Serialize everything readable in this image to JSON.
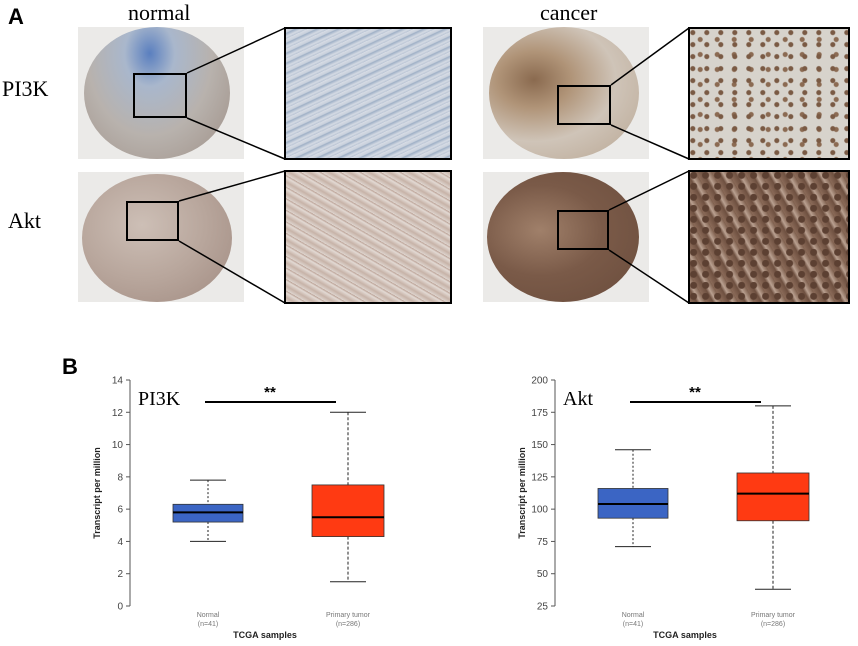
{
  "panel_a": {
    "letter": "A",
    "columns": [
      "normal",
      "cancer"
    ],
    "rows": [
      "PI3K",
      "Akt"
    ]
  },
  "panel_b": {
    "letter": "B"
  },
  "colors": {
    "normal_box": "#3b65c4",
    "tumor_box": "#ff3a12",
    "stain_blue": "#8fa4c4",
    "stain_brown": "#7a5a4a"
  },
  "chart_data": [
    {
      "type": "boxplot",
      "title": "PI3K",
      "significance": "**",
      "xlabel": "TCGA samples",
      "ylabel": "Transcript per million",
      "ylim": [
        0,
        14
      ],
      "yticks": [
        "0",
        "2",
        "4",
        "6",
        "8",
        "10",
        "12",
        "14"
      ],
      "groups": [
        {
          "name": "Normal",
          "n": "(n=41)",
          "color": "#3b65c4",
          "min": 4.0,
          "q1": 5.2,
          "median": 5.8,
          "q3": 6.3,
          "max": 7.8
        },
        {
          "name": "Primary tumor",
          "n": "(n=286)",
          "color": "#ff3a12",
          "min": 1.5,
          "q1": 4.3,
          "median": 5.5,
          "q3": 7.5,
          "max": 12.0
        }
      ]
    },
    {
      "type": "boxplot",
      "title": "Akt",
      "significance": "**",
      "xlabel": "TCGA samples",
      "ylabel": "Transcript per million",
      "ylim": [
        25,
        200
      ],
      "yticks": [
        "25",
        "50",
        "75",
        "100",
        "125",
        "150",
        "175",
        "200"
      ],
      "groups": [
        {
          "name": "Normal",
          "n": "(n=41)",
          "color": "#3b65c4",
          "min": 71,
          "q1": 93,
          "median": 104,
          "q3": 116,
          "max": 146
        },
        {
          "name": "Primary tumor",
          "n": "(n=286)",
          "color": "#ff3a12",
          "min": 38,
          "q1": 91,
          "median": 112,
          "q3": 128,
          "max": 180
        }
      ]
    }
  ]
}
